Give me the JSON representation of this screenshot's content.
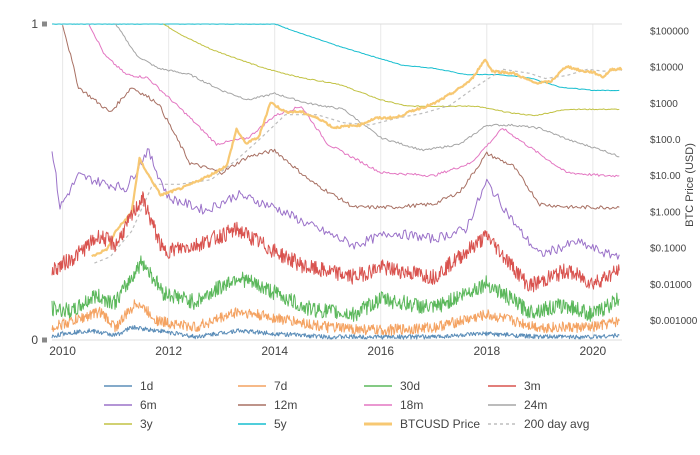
{
  "chart_data": {
    "type": "line",
    "x_ticks": [
      "2010",
      "2012",
      "2014",
      "2016",
      "2018",
      "2020"
    ],
    "xlim": [
      2009.8,
      2020.55
    ],
    "y_left_ticks": [
      "0",
      "1"
    ],
    "y_left_range": [
      0,
      1
    ],
    "y_right_ticks": [
      "$0.001000",
      "$0.01000",
      "$0.1000",
      "$1.000",
      "$10.00",
      "$100.0",
      "$1000",
      "$10000",
      "$100000"
    ],
    "y_right_label": "BTC Price (USD)",
    "y_right_range": [
      0.0003,
      160000
    ],
    "y_right_scale": "log",
    "grid": "vertical",
    "legend_position": "bottom",
    "series": [
      {
        "name": "1d",
        "color": "#5b8db8",
        "axis": "left",
        "points": [
          [
            2009.8,
            0.01
          ],
          [
            2010.0,
            0.02
          ],
          [
            2010.5,
            0.03
          ],
          [
            2011.0,
            0.015
          ],
          [
            2011.3,
            0.04
          ],
          [
            2011.8,
            0.03
          ],
          [
            2012.5,
            0.01
          ],
          [
            2013.3,
            0.03
          ],
          [
            2014.0,
            0.02
          ],
          [
            2015.0,
            0.01
          ],
          [
            2016.0,
            0.01
          ],
          [
            2017.0,
            0.01
          ],
          [
            2018.0,
            0.02
          ],
          [
            2019.0,
            0.01
          ],
          [
            2020.0,
            0.01
          ],
          [
            2020.5,
            0.015
          ]
        ]
      },
      {
        "name": "7d",
        "color": "#f4a261",
        "axis": "left",
        "points": [
          [
            2009.8,
            0.04
          ],
          [
            2010.2,
            0.06
          ],
          [
            2010.7,
            0.09
          ],
          [
            2011.0,
            0.04
          ],
          [
            2011.4,
            0.12
          ],
          [
            2011.8,
            0.06
          ],
          [
            2012.5,
            0.04
          ],
          [
            2013.3,
            0.09
          ],
          [
            2014.0,
            0.07
          ],
          [
            2015.0,
            0.04
          ],
          [
            2016.0,
            0.03
          ],
          [
            2017.0,
            0.04
          ],
          [
            2018.0,
            0.08
          ],
          [
            2019.0,
            0.04
          ],
          [
            2020.0,
            0.04
          ],
          [
            2020.5,
            0.06
          ]
        ]
      },
      {
        "name": "30d",
        "color": "#5cb85c",
        "axis": "left",
        "points": [
          [
            2009.8,
            0.1
          ],
          [
            2010.2,
            0.09
          ],
          [
            2010.6,
            0.14
          ],
          [
            2011.0,
            0.12
          ],
          [
            2011.5,
            0.25
          ],
          [
            2011.9,
            0.15
          ],
          [
            2012.5,
            0.12
          ],
          [
            2013.3,
            0.2
          ],
          [
            2014.0,
            0.15
          ],
          [
            2014.6,
            0.1
          ],
          [
            2015.5,
            0.08
          ],
          [
            2016.0,
            0.13
          ],
          [
            2017.0,
            0.1
          ],
          [
            2018.0,
            0.18
          ],
          [
            2018.8,
            0.09
          ],
          [
            2019.5,
            0.11
          ],
          [
            2020.0,
            0.08
          ],
          [
            2020.5,
            0.13
          ]
        ]
      },
      {
        "name": "3m",
        "color": "#d9534f",
        "axis": "left",
        "points": [
          [
            2009.8,
            0.22
          ],
          [
            2010.2,
            0.26
          ],
          [
            2010.7,
            0.33
          ],
          [
            2011.0,
            0.3
          ],
          [
            2011.5,
            0.45
          ],
          [
            2011.9,
            0.28
          ],
          [
            2012.5,
            0.3
          ],
          [
            2013.3,
            0.35
          ],
          [
            2014.0,
            0.28
          ],
          [
            2014.6,
            0.23
          ],
          [
            2015.5,
            0.2
          ],
          [
            2016.0,
            0.23
          ],
          [
            2017.0,
            0.2
          ],
          [
            2018.0,
            0.33
          ],
          [
            2018.8,
            0.17
          ],
          [
            2019.5,
            0.22
          ],
          [
            2020.0,
            0.18
          ],
          [
            2020.5,
            0.22
          ]
        ]
      },
      {
        "name": "6m",
        "color": "#9b72c9",
        "axis": "left",
        "points": [
          [
            2009.8,
            0.61
          ],
          [
            2009.95,
            0.42
          ],
          [
            2010.3,
            0.52
          ],
          [
            2010.7,
            0.5
          ],
          [
            2011.2,
            0.48
          ],
          [
            2011.6,
            0.6
          ],
          [
            2012.0,
            0.45
          ],
          [
            2012.7,
            0.41
          ],
          [
            2013.3,
            0.46
          ],
          [
            2014.0,
            0.42
          ],
          [
            2014.7,
            0.36
          ],
          [
            2015.5,
            0.3
          ],
          [
            2016.2,
            0.34
          ],
          [
            2017.0,
            0.32
          ],
          [
            2017.6,
            0.35
          ],
          [
            2018.0,
            0.5
          ],
          [
            2018.6,
            0.35
          ],
          [
            2019.0,
            0.27
          ],
          [
            2019.7,
            0.31
          ],
          [
            2020.3,
            0.27
          ],
          [
            2020.5,
            0.27
          ]
        ]
      },
      {
        "name": "12m",
        "color": "#a87063",
        "axis": "left",
        "points": [
          [
            2010.0,
            1.0
          ],
          [
            2010.3,
            0.8
          ],
          [
            2010.6,
            0.76
          ],
          [
            2010.9,
            0.72
          ],
          [
            2011.3,
            0.8
          ],
          [
            2011.8,
            0.75
          ],
          [
            2012.4,
            0.56
          ],
          [
            2013.0,
            0.53
          ],
          [
            2013.5,
            0.58
          ],
          [
            2014.0,
            0.6
          ],
          [
            2014.7,
            0.5
          ],
          [
            2015.5,
            0.42
          ],
          [
            2016.2,
            0.42
          ],
          [
            2017.0,
            0.43
          ],
          [
            2017.5,
            0.47
          ],
          [
            2018.0,
            0.59
          ],
          [
            2018.5,
            0.55
          ],
          [
            2019.0,
            0.43
          ],
          [
            2019.6,
            0.42
          ],
          [
            2020.2,
            0.42
          ],
          [
            2020.5,
            0.42
          ]
        ]
      },
      {
        "name": "18m",
        "color": "#e377c2",
        "axis": "left",
        "points": [
          [
            2010.5,
            1.0
          ],
          [
            2010.8,
            0.9
          ],
          [
            2011.2,
            0.84
          ],
          [
            2011.6,
            0.83
          ],
          [
            2012.3,
            0.72
          ],
          [
            2012.9,
            0.62
          ],
          [
            2013.5,
            0.64
          ],
          [
            2014.0,
            0.71
          ],
          [
            2014.5,
            0.74
          ],
          [
            2015.0,
            0.62
          ],
          [
            2016.0,
            0.53
          ],
          [
            2017.0,
            0.52
          ],
          [
            2017.7,
            0.56
          ],
          [
            2018.3,
            0.67
          ],
          [
            2018.9,
            0.6
          ],
          [
            2019.5,
            0.53
          ],
          [
            2020.2,
            0.52
          ],
          [
            2020.5,
            0.52
          ]
        ]
      },
      {
        "name": "24m",
        "color": "#a6a6a6",
        "axis": "left",
        "points": [
          [
            2011.0,
            1.0
          ],
          [
            2011.4,
            0.9
          ],
          [
            2011.8,
            0.86
          ],
          [
            2012.4,
            0.84
          ],
          [
            2013.0,
            0.79
          ],
          [
            2013.5,
            0.76
          ],
          [
            2014.0,
            0.78
          ],
          [
            2014.6,
            0.75
          ],
          [
            2015.3,
            0.73
          ],
          [
            2016.0,
            0.64
          ],
          [
            2016.8,
            0.6
          ],
          [
            2017.5,
            0.62
          ],
          [
            2018.0,
            0.68
          ],
          [
            2018.5,
            0.68
          ],
          [
            2019.0,
            0.67
          ],
          [
            2019.6,
            0.63
          ],
          [
            2020.2,
            0.6
          ],
          [
            2020.5,
            0.58
          ]
        ]
      },
      {
        "name": "3y",
        "color": "#c2c244",
        "axis": "left",
        "points": [
          [
            2011.9,
            1.0
          ],
          [
            2012.3,
            0.96
          ],
          [
            2012.8,
            0.92
          ],
          [
            2013.3,
            0.89
          ],
          [
            2013.8,
            0.86
          ],
          [
            2014.5,
            0.83
          ],
          [
            2015.2,
            0.81
          ],
          [
            2016.0,
            0.76
          ],
          [
            2016.5,
            0.74
          ],
          [
            2017.2,
            0.74
          ],
          [
            2017.8,
            0.74
          ],
          [
            2018.4,
            0.72
          ],
          [
            2018.9,
            0.71
          ],
          [
            2019.5,
            0.73
          ],
          [
            2020.0,
            0.73
          ],
          [
            2020.5,
            0.73
          ]
        ]
      },
      {
        "name": "5y",
        "color": "#17becf",
        "axis": "left",
        "points": [
          [
            2009.8,
            1.0
          ],
          [
            2014.0,
            1.0
          ],
          [
            2014.5,
            0.97
          ],
          [
            2015.2,
            0.93
          ],
          [
            2015.8,
            0.9
          ],
          [
            2016.4,
            0.87
          ],
          [
            2017.0,
            0.86
          ],
          [
            2017.6,
            0.84
          ],
          [
            2018.2,
            0.84
          ],
          [
            2018.8,
            0.83
          ],
          [
            2019.4,
            0.8
          ],
          [
            2020.0,
            0.79
          ],
          [
            2020.5,
            0.79
          ]
        ]
      },
      {
        "name": "BTCUSD Price",
        "color": "#f7c873",
        "axis": "right",
        "points": [
          [
            2010.55,
            0.06
          ],
          [
            2010.85,
            0.1
          ],
          [
            2011.0,
            0.3
          ],
          [
            2011.3,
            1
          ],
          [
            2011.45,
            30
          ],
          [
            2011.6,
            12
          ],
          [
            2011.85,
            3
          ],
          [
            2012.3,
            5
          ],
          [
            2012.8,
            11
          ],
          [
            2013.1,
            20
          ],
          [
            2013.28,
            200
          ],
          [
            2013.45,
            80
          ],
          [
            2013.7,
            120
          ],
          [
            2013.92,
            1100
          ],
          [
            2014.2,
            600
          ],
          [
            2014.5,
            600
          ],
          [
            2014.9,
            350
          ],
          [
            2015.1,
            220
          ],
          [
            2015.6,
            260
          ],
          [
            2015.9,
            400
          ],
          [
            2016.3,
            420
          ],
          [
            2016.6,
            650
          ],
          [
            2017.0,
            1000
          ],
          [
            2017.4,
            2200
          ],
          [
            2017.7,
            4500
          ],
          [
            2017.97,
            17000
          ],
          [
            2018.1,
            8000
          ],
          [
            2018.5,
            7000
          ],
          [
            2018.9,
            3800
          ],
          [
            2019.2,
            4000
          ],
          [
            2019.5,
            11000
          ],
          [
            2019.8,
            8000
          ],
          [
            2020.0,
            7500
          ],
          [
            2020.2,
            5500
          ],
          [
            2020.35,
            9000
          ],
          [
            2020.55,
            9200
          ]
        ]
      },
      {
        "name": "200 day avg",
        "color": "#bdbdbd",
        "axis": "right",
        "dashed": true,
        "points": [
          [
            2010.6,
            0.04
          ],
          [
            2010.9,
            0.06
          ],
          [
            2011.3,
            0.3
          ],
          [
            2011.7,
            6
          ],
          [
            2012.2,
            6
          ],
          [
            2012.8,
            8
          ],
          [
            2013.3,
            30
          ],
          [
            2013.7,
            100
          ],
          [
            2014.2,
            500
          ],
          [
            2014.8,
            500
          ],
          [
            2015.3,
            300
          ],
          [
            2015.8,
            260
          ],
          [
            2016.3,
            400
          ],
          [
            2016.8,
            550
          ],
          [
            2017.3,
            900
          ],
          [
            2017.8,
            3000
          ],
          [
            2018.3,
            9000
          ],
          [
            2018.8,
            7000
          ],
          [
            2019.1,
            5000
          ],
          [
            2019.5,
            6000
          ],
          [
            2019.9,
            9000
          ],
          [
            2020.2,
            8000
          ],
          [
            2020.55,
            8500
          ]
        ]
      }
    ]
  }
}
